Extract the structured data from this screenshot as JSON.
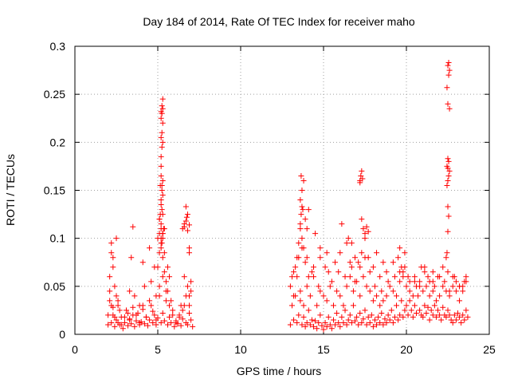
{
  "chart_data": {
    "type": "scatter",
    "title": "Day 184 of 2014, Rate Of TEC Index for receiver maho",
    "xlabel": "GPS time / hours",
    "ylabel": "ROTI / TECUs",
    "xlim": [
      0,
      25
    ],
    "ylim": [
      0,
      0.3
    ],
    "xticks": [
      "0",
      "5",
      "10",
      "15",
      "20",
      "25"
    ],
    "yticks": [
      "0",
      "0.05",
      "0.1",
      "0.15",
      "0.2",
      "0.25",
      "0.3"
    ],
    "grid": true,
    "marker": "plus",
    "color": "#ff0000",
    "series": [
      {
        "x": [
          2.0,
          2.1,
          2.2,
          2.3,
          2.4,
          2.5,
          2.6,
          2.7,
          2.8,
          2.9,
          3.0,
          3.1,
          3.2,
          3.3,
          3.4,
          3.5,
          3.6,
          3.7,
          3.8,
          3.9,
          4.0,
          4.1,
          4.2,
          4.3,
          4.4,
          4.5,
          4.6,
          4.7,
          4.8,
          4.9,
          5.0,
          5.1,
          5.2,
          5.3,
          5.4,
          5.5,
          5.6,
          5.7,
          5.8,
          5.9,
          6.0,
          6.1,
          6.2,
          6.3,
          6.4,
          6.5,
          6.6,
          6.7,
          6.8,
          6.9,
          7.0,
          7.1,
          2.0,
          2.1,
          2.2,
          2.3,
          2.4,
          2.5,
          2.6,
          2.7,
          2.8,
          3.0,
          3.2,
          3.3,
          3.5,
          3.7,
          3.9,
          4.1,
          4.3,
          4.5,
          4.7,
          4.9,
          5.1,
          5.3,
          5.5,
          5.7,
          5.9,
          6.1,
          6.3,
          6.5,
          6.7,
          6.9,
          7.0,
          2.1,
          2.2,
          2.3,
          2.4,
          2.6,
          3.3,
          3.6,
          3.9,
          4.2,
          4.6,
          4.9,
          5.0,
          5.1,
          5.2,
          5.3,
          5.4,
          5.5,
          5.6,
          5.8,
          6.4,
          6.6,
          6.8,
          6.9,
          7.0,
          2.2,
          2.3,
          2.5,
          3.4,
          3.5,
          4.1,
          4.5,
          4.8,
          5.0,
          5.1,
          5.1,
          5.2,
          5.2,
          5.3,
          5.3,
          5.4,
          5.4,
          5.6,
          5.7,
          6.5,
          6.6,
          6.7,
          6.8,
          6.9,
          6.9,
          5.15,
          5.2,
          5.25,
          5.2,
          5.3,
          5.2,
          5.25,
          5.3,
          5.2,
          5.25,
          5.3,
          5.2,
          5.25,
          5.3,
          5.2,
          5.25,
          5.3,
          5.2,
          5.25,
          5.3,
          5.2,
          5.25,
          5.1,
          5.15,
          5.2,
          5.3,
          5.35,
          5.2,
          5.25,
          5.3,
          6.6,
          6.7,
          6.8,
          6.9,
          6.75,
          13.0,
          13.1,
          13.2,
          13.3,
          13.4,
          13.5,
          13.6,
          13.7,
          13.8,
          13.9,
          14.0,
          14.1,
          14.2,
          14.3,
          14.4,
          14.5,
          14.6,
          14.7,
          14.8,
          14.9,
          15.0,
          15.1,
          15.2,
          15.3,
          15.4,
          15.5,
          15.6,
          15.7,
          15.8,
          15.9,
          16.0,
          16.1,
          16.2,
          16.3,
          16.4,
          16.5,
          16.6,
          16.7,
          16.8,
          16.9,
          17.0,
          17.1,
          17.2,
          17.3,
          17.4,
          17.5,
          17.6,
          17.7,
          17.8,
          17.9,
          18.0,
          18.1,
          18.2,
          18.3,
          18.4,
          18.5,
          18.6,
          18.7,
          18.8,
          18.9,
          19.0,
          19.1,
          19.2,
          19.3,
          19.4,
          19.5,
          19.6,
          19.7,
          19.8,
          19.9,
          20.0,
          20.1,
          20.2,
          20.3,
          20.4,
          20.5,
          20.6,
          20.7,
          20.8,
          20.9,
          21.0,
          21.1,
          21.2,
          21.3,
          21.4,
          21.5,
          21.6,
          21.7,
          21.8,
          21.9,
          22.0,
          22.1,
          22.2,
          22.3,
          22.4,
          22.5,
          22.6,
          22.7,
          22.8,
          22.9,
          23.0,
          23.1,
          23.2,
          23.3,
          23.4,
          23.5,
          23.6,
          23.7,
          13.0,
          13.2,
          13.4,
          13.6,
          13.8,
          14.0,
          14.2,
          14.4,
          14.6,
          14.8,
          15.0,
          15.2,
          15.4,
          15.6,
          15.8,
          16.0,
          16.2,
          16.4,
          16.6,
          16.8,
          17.0,
          17.2,
          17.4,
          17.6,
          17.8,
          18.0,
          18.2,
          18.4,
          18.6,
          18.8,
          19.0,
          19.2,
          19.4,
          19.6,
          19.8,
          20.0,
          20.2,
          20.4,
          20.6,
          20.8,
          21.0,
          21.2,
          21.4,
          21.6,
          21.8,
          22.0,
          22.2,
          22.4,
          22.6,
          22.8,
          23.0,
          23.2,
          23.4,
          23.6,
          13.1,
          13.3,
          13.5,
          13.7,
          13.9,
          14.1,
          14.3,
          14.7,
          15.1,
          15.5,
          15.9,
          16.3,
          16.6,
          16.9,
          17.2,
          17.5,
          17.8,
          18.1,
          18.5,
          18.9,
          19.3,
          19.6,
          19.9,
          20.2,
          20.5,
          20.8,
          21.1,
          21.4,
          21.7,
          22.0,
          22.3,
          22.6,
          22.9,
          23.2,
          23.5,
          13.2,
          13.4,
          13.5,
          13.6,
          13.7,
          13.8,
          14.0,
          14.4,
          14.8,
          15.3,
          15.7,
          16.0,
          16.4,
          16.7,
          16.9,
          17.1,
          17.3,
          17.5,
          17.7,
          18.0,
          18.4,
          18.8,
          19.2,
          19.5,
          19.7,
          19.8,
          20.1,
          20.5,
          20.9,
          21.3,
          21.6,
          21.9,
          22.2,
          22.5,
          22.8,
          23.0,
          23.2,
          23.4,
          23.6,
          13.6,
          13.65,
          13.7,
          13.6,
          13.7,
          13.8,
          13.65,
          13.75,
          13.9,
          14.0,
          14.1,
          14.5,
          14.8,
          15.2,
          16.1,
          16.5,
          16.7,
          17.2,
          17.25,
          17.3,
          17.2,
          17.35,
          17.3,
          17.4,
          17.5,
          17.6,
          17.7,
          18.2,
          18.6,
          19.6,
          19.9,
          21.1,
          21.6,
          22.4,
          22.45,
          22.5,
          22.55,
          22.5,
          22.45,
          22.5,
          22.55,
          22.6,
          22.5,
          22.45,
          22.55,
          22.5,
          22.6,
          22.5,
          22.45,
          22.55,
          22.6,
          22.5,
          22.55
        ],
        "y": [
          0.01,
          0.035,
          0.012,
          0.02,
          0.008,
          0.015,
          0.03,
          0.01,
          0.018,
          0.006,
          0.012,
          0.025,
          0.009,
          0.016,
          0.011,
          0.02,
          0.008,
          0.014,
          0.022,
          0.01,
          0.013,
          0.026,
          0.011,
          0.018,
          0.009,
          0.015,
          0.03,
          0.012,
          0.02,
          0.01,
          0.017,
          0.04,
          0.012,
          0.022,
          0.014,
          0.035,
          0.01,
          0.018,
          0.012,
          0.025,
          0.008,
          0.014,
          0.011,
          0.02,
          0.009,
          0.016,
          0.03,
          0.012,
          0.01,
          0.022,
          0.015,
          0.008,
          0.02,
          0.045,
          0.03,
          0.028,
          0.018,
          0.04,
          0.012,
          0.025,
          0.01,
          0.018,
          0.022,
          0.015,
          0.028,
          0.02,
          0.012,
          0.03,
          0.018,
          0.035,
          0.024,
          0.015,
          0.05,
          0.06,
          0.045,
          0.03,
          0.02,
          0.012,
          0.018,
          0.025,
          0.04,
          0.03,
          0.045,
          0.06,
          0.085,
          0.07,
          0.05,
          0.035,
          0.045,
          0.04,
          0.03,
          0.05,
          0.055,
          0.04,
          0.07,
          0.085,
          0.09,
          0.08,
          0.065,
          0.055,
          0.045,
          0.035,
          0.03,
          0.06,
          0.05,
          0.04,
          0.055,
          0.095,
          0.08,
          0.1,
          0.08,
          0.112,
          0.075,
          0.09,
          0.07,
          0.1,
          0.105,
          0.12,
          0.095,
          0.11,
          0.125,
          0.1,
          0.085,
          0.11,
          0.07,
          0.06,
          0.11,
          0.115,
          0.133,
          0.125,
          0.09,
          0.085,
          0.155,
          0.165,
          0.15,
          0.175,
          0.16,
          0.185,
          0.195,
          0.2,
          0.205,
          0.21,
          0.22,
          0.225,
          0.23,
          0.235,
          0.232,
          0.238,
          0.245,
          0.14,
          0.13,
          0.145,
          0.135,
          0.155,
          0.12,
          0.125,
          0.115,
          0.105,
          0.11,
          0.1,
          0.095,
          0.105,
          0.112,
          0.118,
          0.108,
          0.114,
          0.122,
          0.01,
          0.03,
          0.015,
          0.04,
          0.012,
          0.02,
          0.035,
          0.01,
          0.018,
          0.008,
          0.012,
          0.025,
          0.01,
          0.015,
          0.008,
          0.014,
          0.006,
          0.012,
          0.02,
          0.009,
          0.005,
          0.012,
          0.008,
          0.018,
          0.01,
          0.006,
          0.015,
          0.01,
          0.022,
          0.012,
          0.008,
          0.018,
          0.012,
          0.025,
          0.01,
          0.015,
          0.02,
          0.012,
          0.03,
          0.014,
          0.018,
          0.01,
          0.022,
          0.012,
          0.016,
          0.025,
          0.01,
          0.018,
          0.012,
          0.02,
          0.008,
          0.015,
          0.01,
          0.018,
          0.012,
          0.022,
          0.01,
          0.016,
          0.012,
          0.02,
          0.015,
          0.025,
          0.012,
          0.018,
          0.03,
          0.015,
          0.02,
          0.035,
          0.018,
          0.025,
          0.03,
          0.02,
          0.035,
          0.025,
          0.018,
          0.03,
          0.022,
          0.04,
          0.025,
          0.02,
          0.018,
          0.03,
          0.022,
          0.028,
          0.015,
          0.025,
          0.02,
          0.03,
          0.018,
          0.025,
          0.02,
          0.015,
          0.028,
          0.02,
          0.018,
          0.025,
          0.02,
          0.015,
          0.012,
          0.02,
          0.015,
          0.022,
          0.018,
          0.012,
          0.02,
          0.015,
          0.025,
          0.018,
          0.05,
          0.04,
          0.06,
          0.045,
          0.03,
          0.05,
          0.04,
          0.06,
          0.03,
          0.045,
          0.04,
          0.035,
          0.05,
          0.03,
          0.045,
          0.04,
          0.03,
          0.05,
          0.06,
          0.045,
          0.055,
          0.04,
          0.06,
          0.05,
          0.045,
          0.035,
          0.04,
          0.03,
          0.035,
          0.04,
          0.05,
          0.045,
          0.04,
          0.055,
          0.06,
          0.05,
          0.045,
          0.04,
          0.05,
          0.055,
          0.045,
          0.05,
          0.04,
          0.045,
          0.035,
          0.04,
          0.05,
          0.045,
          0.04,
          0.05,
          0.045,
          0.035,
          0.05,
          0.06,
          0.06,
          0.07,
          0.08,
          0.09,
          0.075,
          0.06,
          0.065,
          0.05,
          0.07,
          0.055,
          0.065,
          0.06,
          0.075,
          0.055,
          0.07,
          0.08,
          0.065,
          0.05,
          0.045,
          0.055,
          0.06,
          0.065,
          0.07,
          0.055,
          0.06,
          0.05,
          0.065,
          0.055,
          0.05,
          0.06,
          0.055,
          0.045,
          0.06,
          0.05,
          0.055,
          0.065,
          0.08,
          0.095,
          0.11,
          0.1,
          0.09,
          0.08,
          0.07,
          0.08,
          0.065,
          0.075,
          0.085,
          0.095,
          0.07,
          0.08,
          0.075,
          0.085,
          0.1,
          0.08,
          0.07,
          0.06,
          0.065,
          0.075,
          0.08,
          0.07,
          0.065,
          0.06,
          0.055,
          0.07,
          0.06,
          0.055,
          0.06,
          0.07,
          0.065,
          0.06,
          0.055,
          0.05,
          0.045,
          0.055,
          0.115,
          0.125,
          0.133,
          0.14,
          0.15,
          0.16,
          0.165,
          0.13,
          0.12,
          0.11,
          0.13,
          0.105,
          0.09,
          0.085,
          0.115,
          0.1,
          0.095,
          0.16,
          0.165,
          0.17,
          0.158,
          0.162,
          0.12,
          0.11,
          0.105,
          0.112,
          0.107,
          0.085,
          0.075,
          0.09,
          0.085,
          0.07,
          0.065,
          0.08,
          0.085,
          0.107,
          0.123,
          0.133,
          0.155,
          0.16,
          0.165,
          0.17,
          0.173,
          0.175,
          0.18,
          0.183,
          0.235,
          0.24,
          0.257,
          0.27,
          0.275,
          0.28,
          0.283
        ]
      }
    ]
  }
}
